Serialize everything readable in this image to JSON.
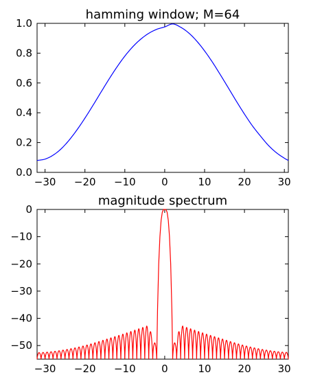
{
  "chart_data": [
    {
      "type": "line",
      "title": "hamming window; M=64",
      "xlabel": "",
      "ylabel": "",
      "xlim": [
        -32,
        31
      ],
      "ylim": [
        0.0,
        1.0
      ],
      "xticks": [
        -30,
        -20,
        -10,
        0,
        10,
        20,
        30
      ],
      "xtick_labels": [
        "−30",
        "−20",
        "−10",
        "0",
        "10",
        "20",
        "30"
      ],
      "yticks": [
        0.0,
        0.2,
        0.4,
        0.6,
        0.8,
        1.0
      ],
      "ytick_labels": [
        "0.0",
        "0.2",
        "0.4",
        "0.6",
        "0.8",
        "1.0"
      ],
      "grid": false,
      "series": [
        {
          "color": "#0000ff",
          "x": [
            -32,
            -30,
            -28,
            -26,
            -24,
            -22,
            -20,
            -18,
            -16,
            -14,
            -12,
            -10,
            -8,
            -6,
            -4,
            -2,
            0,
            2,
            4,
            6,
            8,
            10,
            12,
            14,
            16,
            18,
            20,
            22,
            24,
            26,
            28,
            30,
            31
          ],
          "values": [
            0.08,
            0.089,
            0.115,
            0.157,
            0.215,
            0.285,
            0.364,
            0.449,
            0.537,
            0.624,
            0.706,
            0.78,
            0.843,
            0.894,
            0.933,
            0.96,
            0.976,
            0.996,
            0.974,
            0.936,
            0.882,
            0.815,
            0.738,
            0.653,
            0.565,
            0.476,
            0.391,
            0.312,
            0.244,
            0.181,
            0.132,
            0.095,
            0.08
          ]
        }
      ]
    },
    {
      "type": "line",
      "title": "magnitude spectrum",
      "xlabel": "",
      "ylabel": "",
      "xlim": [
        -32,
        31
      ],
      "ylim": [
        -55,
        0
      ],
      "xticks": [
        -30,
        -20,
        -10,
        0,
        10,
        20,
        30
      ],
      "xtick_labels": [
        "−30",
        "−20",
        "−10",
        "0",
        "10",
        "20",
        "30"
      ],
      "yticks": [
        0,
        -10,
        -20,
        -30,
        -40,
        -50
      ],
      "ytick_labels": [
        "0",
        "−10",
        "−20",
        "−30",
        "−40",
        "−50"
      ],
      "grid": false,
      "series": [
        {
          "color": "#ff0000",
          "main_lobe": {
            "x": [
              -2.0,
              -1.8,
              -1.5,
              -1.2,
              -0.9,
              -0.6,
              -0.3,
              0.0,
              0.3,
              0.6,
              0.9,
              1.2,
              1.5,
              1.8,
              2.0
            ],
            "values": [
              -55,
              -37,
              -20,
              -10,
              -4,
              -1,
              0,
              0,
              0,
              -1,
              -4,
              -10,
              -20,
              -37,
              -55
            ]
          },
          "sidelobe_peaks": {
            "x": [
              -31.5,
              -30,
              -28,
              -26,
              -24,
              -22,
              -20,
              -18,
              -16,
              -14,
              -12,
              -10,
              -8,
              -6,
              -4,
              -2.7,
              2.7,
              4,
              6,
              8,
              10,
              12,
              14,
              16,
              18,
              20,
              22,
              24,
              26,
              28,
              30
            ],
            "values": [
              -52.6,
              -52.5,
              -52.2,
              -51.8,
              -51.3,
              -50.7,
              -50.0,
              -49.2,
              -48.3,
              -47.4,
              -46.5,
              -45.6,
              -44.6,
              -43.6,
              -42.6,
              -49.0,
              -49.0,
              -42.6,
              -43.6,
              -44.6,
              -45.6,
              -46.5,
              -47.4,
              -48.3,
              -49.2,
              -50.0,
              -50.7,
              -51.3,
              -51.8,
              -52.2,
              -52.5
            ]
          },
          "sidelobe_floor": -55
        }
      ]
    }
  ]
}
